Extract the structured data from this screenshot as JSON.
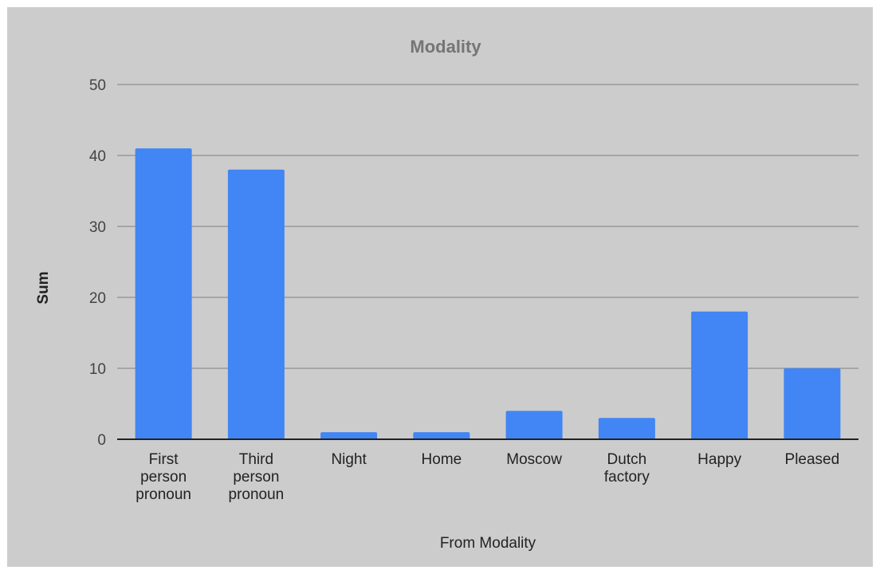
{
  "chart_data": {
    "type": "bar",
    "title": "Modality",
    "xlabel": "From Modality",
    "ylabel": "Sum",
    "categories": [
      [
        "First",
        "person",
        "pronoun"
      ],
      [
        "Third",
        "person",
        "pronoun"
      ],
      [
        "Night"
      ],
      [
        "Home"
      ],
      [
        "Moscow"
      ],
      [
        "Dutch",
        "factory"
      ],
      [
        "Happy"
      ],
      [
        "Pleased"
      ]
    ],
    "values": [
      41,
      38,
      1,
      1,
      4,
      3,
      18,
      10
    ],
    "ylim": [
      0,
      50
    ],
    "yticks": [
      0,
      10,
      20,
      30,
      40,
      50
    ],
    "grid": true,
    "legend": "none",
    "colors": {
      "bar": "#4285f4",
      "grid": "#999999",
      "axis": "#222222",
      "background": "#cccccc"
    }
  }
}
